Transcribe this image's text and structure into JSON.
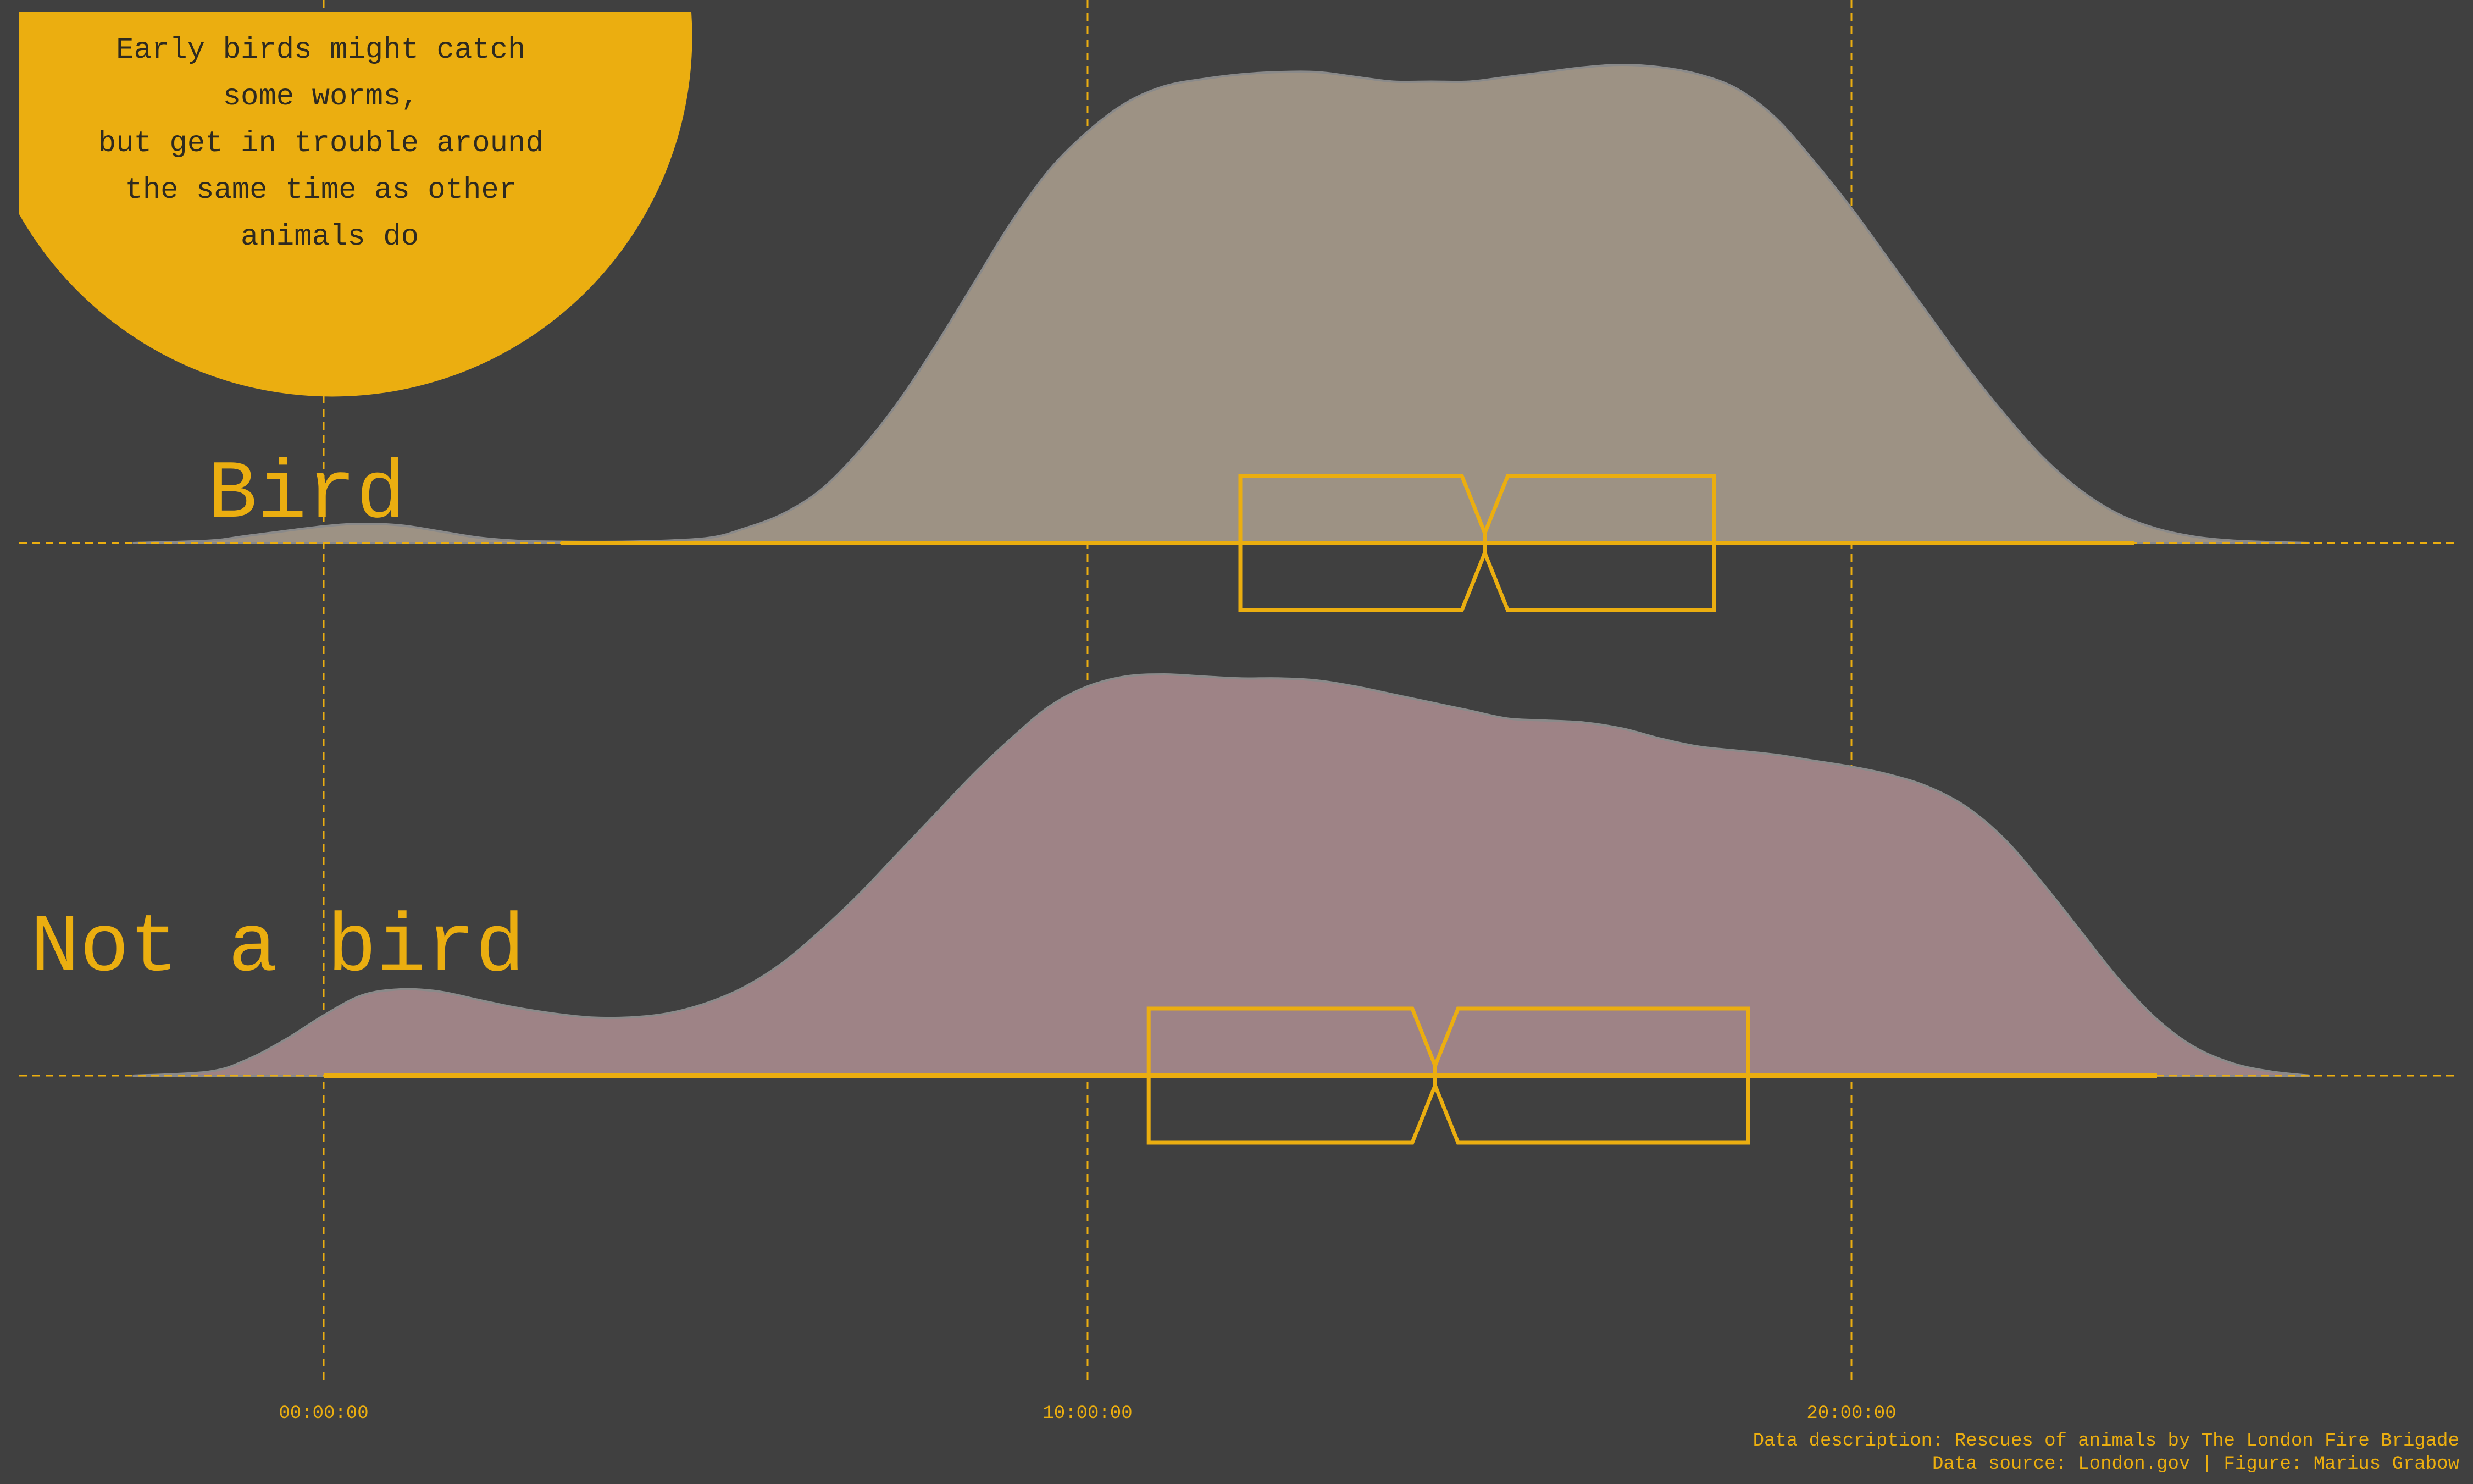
{
  "colors": {
    "background": "#404040",
    "accent": "#EBAE10",
    "annotation_text": "#2E2A20",
    "bird_fill": "#9D9284",
    "not_bird_fill": "#9E8386",
    "density_stroke": "#8A8A8A"
  },
  "annotation": {
    "lines": [
      "Early birds might catch",
      "some worms,",
      "but get in trouble around",
      "the same time as other",
      "animals do"
    ]
  },
  "footer": {
    "description": "Data description: Rescues of animals by The London Fire Brigade",
    "source": "Data source: London.gov | Figure: Marius Grabow"
  },
  "chart_data": {
    "type": "area",
    "subtype": "ridgeline density with notched boxplots",
    "title": "",
    "xlabel": "",
    "ylabel": "",
    "x_unit": "hour of day",
    "xlim": [
      -4.2,
      28.2
    ],
    "x_ticks": [
      {
        "value": 0,
        "label": "00:00:00"
      },
      {
        "value": 10,
        "label": "10:00:00"
      },
      {
        "value": 20,
        "label": "20:00:00"
      }
    ],
    "grid": {
      "vertical_dashed_at": [
        0,
        10,
        20
      ],
      "baseline_dashed": true
    },
    "density_relative_height_note": "density values are relative heights (max = 1.0)",
    "series": [
      {
        "name": "Bird",
        "density": {
          "x": [
            -2.5,
            -1.5,
            -1,
            0,
            0.5,
            1,
            1.5,
            2,
            2.5,
            3,
            4,
            5,
            5.5,
            6,
            6.5,
            7,
            7.5,
            8,
            8.5,
            9,
            9.5,
            10,
            10.5,
            11,
            11.5,
            12,
            12.5,
            13,
            13.5,
            14,
            14.5,
            15,
            15.5,
            16,
            16.5,
            17,
            17.5,
            18,
            18.5,
            19,
            19.5,
            20,
            20.5,
            21,
            21.5,
            22,
            22.5,
            23,
            23.5,
            24,
            24.5,
            25,
            25.5,
            26
          ],
          "y": [
            0,
            0.005,
            0.015,
            0.035,
            0.04,
            0.037,
            0.025,
            0.012,
            0.005,
            0.003,
            0.003,
            0.01,
            0.03,
            0.06,
            0.11,
            0.19,
            0.29,
            0.41,
            0.54,
            0.67,
            0.78,
            0.86,
            0.92,
            0.955,
            0.97,
            0.98,
            0.985,
            0.985,
            0.975,
            0.965,
            0.965,
            0.965,
            0.975,
            0.985,
            0.995,
            1.0,
            0.995,
            0.98,
            0.95,
            0.89,
            0.8,
            0.7,
            0.59,
            0.48,
            0.37,
            0.27,
            0.18,
            0.11,
            0.06,
            0.03,
            0.013,
            0.005,
            0.002,
            0
          ]
        },
        "boxplot": {
          "whisker_low": 3.1,
          "q1": 12.0,
          "notch_low": 14.9,
          "median": 15.2,
          "notch_high": 15.5,
          "q3": 18.2,
          "whisker_high": 23.7
        }
      },
      {
        "name": "Not a bird",
        "density": {
          "x": [
            -2.5,
            -1.5,
            -1,
            -0.5,
            0,
            0.5,
            1,
            1.5,
            2,
            2.5,
            3,
            3.5,
            4,
            4.5,
            5,
            5.5,
            6,
            6.5,
            7,
            7.5,
            8,
            8.5,
            9,
            9.5,
            10,
            10.5,
            11,
            11.5,
            12,
            12.5,
            13,
            13.5,
            14,
            14.5,
            15,
            15.5,
            16,
            16.5,
            17,
            17.5,
            18,
            18.5,
            19,
            19.5,
            20,
            20.5,
            21,
            21.5,
            22,
            22.5,
            23,
            23.5,
            24,
            24.5,
            25,
            25.5,
            26
          ],
          "y": [
            0,
            0.01,
            0.04,
            0.09,
            0.15,
            0.2,
            0.215,
            0.21,
            0.19,
            0.17,
            0.155,
            0.145,
            0.145,
            0.155,
            0.18,
            0.22,
            0.28,
            0.36,
            0.45,
            0.55,
            0.65,
            0.75,
            0.84,
            0.92,
            0.97,
            0.995,
            1.0,
            0.995,
            0.99,
            0.99,
            0.985,
            0.97,
            0.95,
            0.93,
            0.91,
            0.89,
            0.885,
            0.88,
            0.865,
            0.84,
            0.82,
            0.81,
            0.8,
            0.785,
            0.77,
            0.75,
            0.72,
            0.67,
            0.59,
            0.48,
            0.36,
            0.24,
            0.14,
            0.07,
            0.03,
            0.01,
            0
          ]
        },
        "boxplot": {
          "whisker_low": 0.0,
          "q1": 10.8,
          "notch_low": 14.25,
          "median": 14.55,
          "notch_high": 14.85,
          "q3": 18.65,
          "whisker_high": 24.0
        }
      }
    ]
  }
}
